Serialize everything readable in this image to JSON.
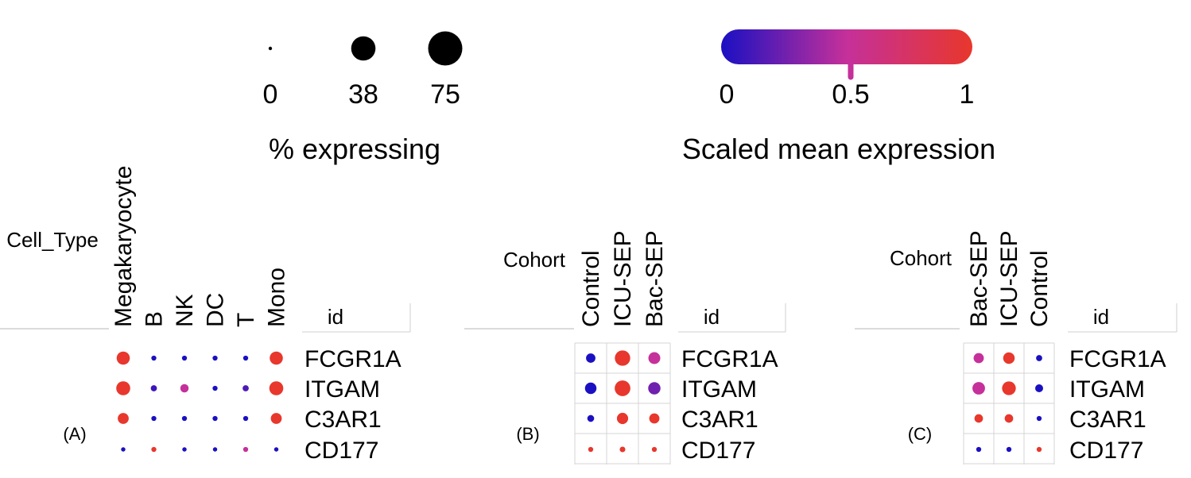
{
  "colors": {
    "low": "#1a10c2",
    "mid": "#c5309a",
    "high": "#e8372c",
    "grid": "#d4d4d4",
    "rule": "#cfcfcf"
  },
  "legend": {
    "size": {
      "title": "% expressing",
      "ticks": [
        "0",
        "38",
        "75"
      ],
      "values": [
        0,
        38,
        75
      ]
    },
    "color": {
      "title": "Scaled mean expression",
      "ticks": [
        "0",
        "0.5",
        "1"
      ],
      "values": [
        0,
        0.5,
        1
      ]
    }
  },
  "chart_data": [
    {
      "type": "dotplot",
      "panel_label": "(A)",
      "group_title": "Cell_Type",
      "row_header": "id",
      "grid": false,
      "columns": [
        "Megakaryocyte",
        "B",
        "NK",
        "DC",
        "T",
        "Mono"
      ],
      "rows": [
        "FCGR1A",
        "ITGAM",
        "C3AR1",
        "CD177"
      ],
      "pct": [
        [
          55,
          8,
          8,
          8,
          8,
          55
        ],
        [
          62,
          12,
          22,
          8,
          12,
          62
        ],
        [
          38,
          8,
          8,
          8,
          8,
          38
        ],
        [
          6,
          8,
          6,
          6,
          8,
          6
        ]
      ],
      "expr": [
        [
          1,
          0,
          0,
          0,
          0,
          1
        ],
        [
          1,
          0.1,
          0.5,
          0,
          0.15,
          1
        ],
        [
          1,
          0,
          0,
          0,
          0,
          1
        ],
        [
          0,
          1,
          0,
          0,
          0.5,
          0
        ]
      ]
    },
    {
      "type": "dotplot",
      "panel_label": "(B)",
      "group_title": "Cohort",
      "row_header": "id",
      "grid": true,
      "columns": [
        "Control",
        "ICU-SEP",
        "Bac-SEP"
      ],
      "rows": [
        "FCGR1A",
        "ITGAM",
        "C3AR1",
        "CD177"
      ],
      "pct": [
        [
          28,
          75,
          45
        ],
        [
          42,
          78,
          48
        ],
        [
          15,
          40,
          33
        ],
        [
          8,
          10,
          8
        ]
      ],
      "expr": [
        [
          0,
          1,
          0.5
        ],
        [
          0,
          1,
          0.25
        ],
        [
          0,
          1,
          1
        ],
        [
          1,
          1,
          1
        ]
      ]
    },
    {
      "type": "dotplot",
      "panel_label": "(C)",
      "group_title": "Cohort",
      "row_header": "id",
      "grid": true,
      "columns": [
        "Bac-SEP",
        "ICU-SEP",
        "Control"
      ],
      "rows": [
        "FCGR1A",
        "ITGAM",
        "C3AR1",
        "CD177"
      ],
      "pct": [
        [
          33,
          42,
          12
        ],
        [
          50,
          60,
          20
        ],
        [
          23,
          23,
          8
        ],
        [
          8,
          8,
          8
        ]
      ],
      "expr": [
        [
          0.5,
          1,
          0
        ],
        [
          0.5,
          1,
          0
        ],
        [
          1,
          1,
          0
        ],
        [
          0,
          0,
          1
        ]
      ]
    }
  ]
}
